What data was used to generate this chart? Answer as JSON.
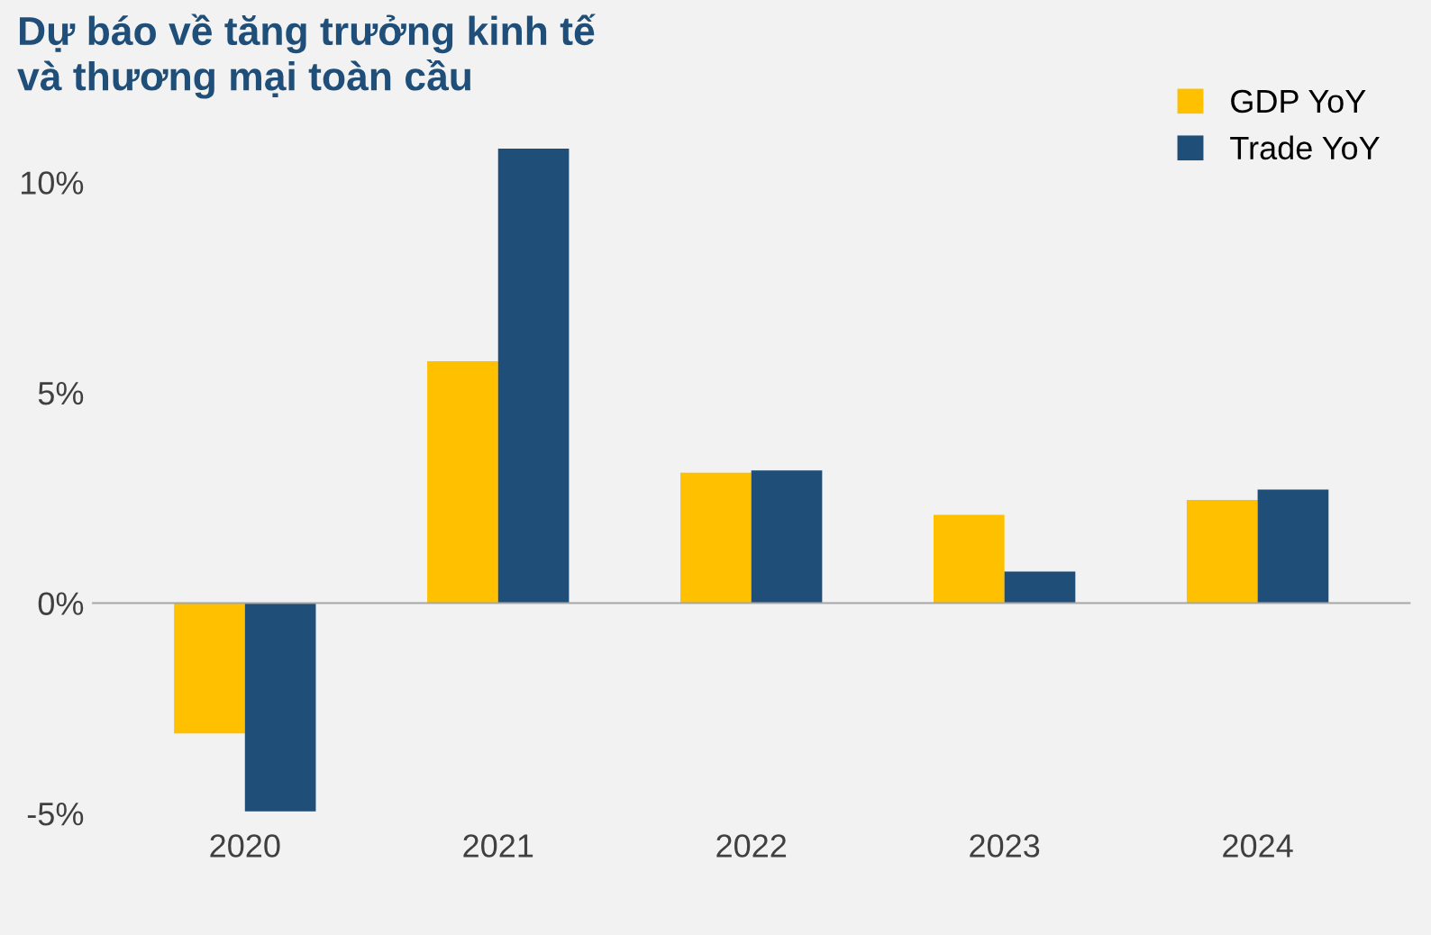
{
  "chart_data": {
    "type": "bar",
    "title": "Dự báo về tăng trưởng kinh tế\nvà thương mại toàn cầu",
    "categories": [
      "2020",
      "2021",
      "2022",
      "2023",
      "2024"
    ],
    "series": [
      {
        "name": "GDP YoY",
        "color": "#ffc000",
        "values": [
          -3.1,
          5.75,
          3.1,
          2.1,
          2.45
        ]
      },
      {
        "name": "Trade YoY",
        "color": "#1f4e79",
        "values": [
          -4.95,
          10.8,
          3.15,
          0.75,
          2.7
        ]
      }
    ],
    "ylim": [
      -5,
      11
    ],
    "yticks": [
      {
        "value": -5,
        "label": "-5%"
      },
      {
        "value": 0,
        "label": "0%"
      },
      {
        "value": 5,
        "label": "5%"
      },
      {
        "value": 10,
        "label": "10%"
      }
    ],
    "legend": "top right"
  }
}
